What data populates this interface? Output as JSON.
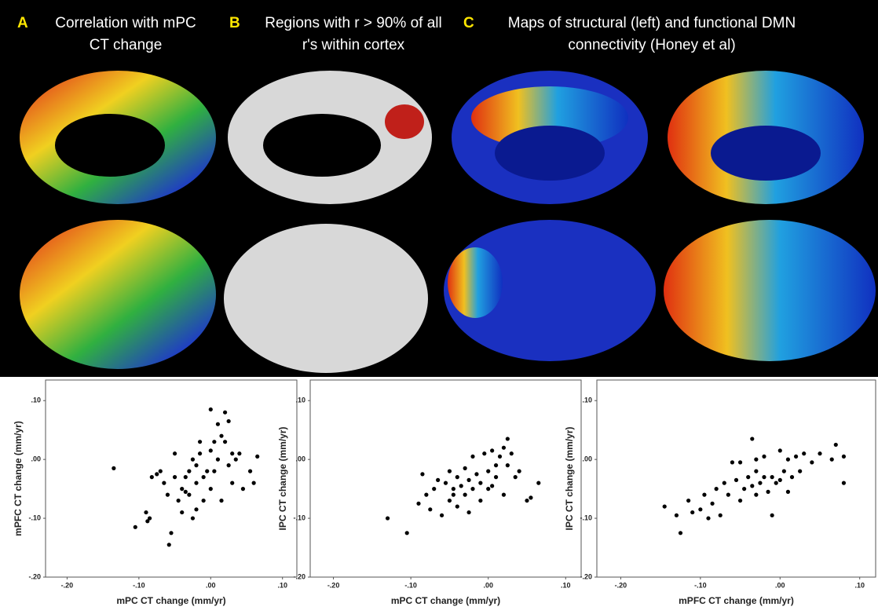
{
  "panels": [
    {
      "letter": "A",
      "lines": [
        "Correlation with mPC",
        "CT change"
      ]
    },
    {
      "letter": "B",
      "lines": [
        "Regions with r > 90% of all",
        "r's within cortex"
      ]
    },
    {
      "letter": "C",
      "lines": [
        "Maps of structural (left) and functional DMN",
        "connectivity (Honey et al)"
      ]
    }
  ],
  "chart_data": [
    {
      "type": "scatter",
      "xlabel": "mPC CT change (mm/yr)",
      "ylabel": "mPFC CT change (mm/yr)",
      "color": "#000000",
      "xlim": [
        -0.23,
        0.12
      ],
      "ylim": [
        -0.2,
        0.135
      ],
      "xticks": [
        {
          "value": -0.2,
          "label": "-.20"
        },
        {
          "value": -0.1,
          "label": "-.10"
        },
        {
          "value": 0,
          "label": ".00"
        },
        {
          "value": 0.1,
          "label": ".10"
        }
      ],
      "yticks": [
        {
          "value": 0.1,
          "label": ".10"
        },
        {
          "value": 0,
          "label": ".00"
        },
        {
          "value": -0.1,
          "label": "-.10"
        },
        {
          "value": -0.2,
          "label": "-.20"
        }
      ],
      "x": [
        -0.135,
        -0.105,
        -0.09,
        -0.088,
        -0.085,
        -0.082,
        -0.075,
        -0.07,
        -0.065,
        -0.06,
        -0.058,
        -0.055,
        -0.05,
        -0.05,
        -0.045,
        -0.04,
        -0.04,
        -0.035,
        -0.03,
        -0.03,
        -0.025,
        -0.025,
        -0.02,
        -0.02,
        -0.015,
        -0.01,
        -0.01,
        -0.005,
        0.0,
        0.0,
        0.0,
        0.005,
        0.005,
        0.01,
        0.01,
        0.015,
        0.02,
        0.02,
        0.025,
        0.025,
        0.03,
        0.03,
        0.035,
        0.04,
        0.045,
        0.055,
        0.06,
        0.065,
        -0.02,
        -0.015,
        -0.035,
        0.015
      ],
      "values": [
        -0.015,
        -0.115,
        -0.09,
        -0.105,
        -0.1,
        -0.03,
        -0.025,
        -0.02,
        -0.04,
        -0.06,
        -0.145,
        -0.125,
        0.01,
        -0.03,
        -0.07,
        -0.09,
        -0.05,
        -0.03,
        -0.02,
        -0.06,
        -0.1,
        0.0,
        -0.04,
        -0.01,
        0.01,
        -0.03,
        -0.07,
        -0.02,
        0.015,
        -0.05,
        0.085,
        0.03,
        -0.02,
        0.06,
        0.0,
        -0.07,
        0.08,
        0.03,
        -0.01,
        0.065,
        0.01,
        -0.04,
        0.0,
        0.01,
        -0.05,
        -0.02,
        -0.04,
        0.005,
        -0.085,
        0.03,
        -0.055,
        0.04
      ]
    },
    {
      "type": "scatter",
      "xlabel": "mPC CT change (mm/yr)",
      "ylabel": "IPC CT change (mm/yr)",
      "color": "#000000",
      "xlim": [
        -0.23,
        0.12
      ],
      "ylim": [
        -0.2,
        0.135
      ],
      "xticks": [
        {
          "value": -0.2,
          "label": "-.20"
        },
        {
          "value": -0.1,
          "label": "-.10"
        },
        {
          "value": 0,
          "label": ".00"
        },
        {
          "value": 0.1,
          "label": ".10"
        }
      ],
      "yticks": [
        {
          "value": 0.1,
          "label": ".10"
        },
        {
          "value": 0,
          "label": ".00"
        },
        {
          "value": -0.1,
          "label": "-.10"
        },
        {
          "value": -0.2,
          "label": "-.20"
        }
      ],
      "x": [
        -0.13,
        -0.105,
        -0.09,
        -0.085,
        -0.08,
        -0.075,
        -0.07,
        -0.065,
        -0.06,
        -0.055,
        -0.05,
        -0.05,
        -0.045,
        -0.04,
        -0.04,
        -0.035,
        -0.03,
        -0.03,
        -0.025,
        -0.02,
        -0.02,
        -0.015,
        -0.01,
        -0.01,
        -0.005,
        0.0,
        0.0,
        0.005,
        0.01,
        0.01,
        0.015,
        0.02,
        0.02,
        0.025,
        0.025,
        0.03,
        0.035,
        0.04,
        0.05,
        0.055,
        0.065,
        -0.025,
        -0.045,
        0.005
      ],
      "values": [
        -0.1,
        -0.125,
        -0.075,
        -0.025,
        -0.06,
        -0.085,
        -0.05,
        -0.035,
        -0.095,
        -0.04,
        -0.07,
        -0.02,
        -0.05,
        -0.03,
        -0.08,
        -0.045,
        -0.06,
        -0.015,
        -0.035,
        -0.05,
        0.005,
        -0.025,
        -0.07,
        -0.04,
        0.01,
        -0.02,
        -0.05,
        0.015,
        -0.01,
        -0.03,
        0.005,
        -0.06,
        0.02,
        0.035,
        -0.01,
        0.01,
        -0.03,
        -0.02,
        -0.07,
        -0.065,
        -0.04,
        -0.09,
        -0.06,
        -0.045
      ]
    },
    {
      "type": "scatter",
      "xlabel": "mPFC CT change (mm/yr)",
      "ylabel": "IPC CT change (mm/yr)",
      "color": "#000000",
      "xlim": [
        -0.23,
        0.12
      ],
      "ylim": [
        -0.2,
        0.135
      ],
      "xticks": [
        {
          "value": -0.2,
          "label": "-.20"
        },
        {
          "value": -0.1,
          "label": "-.10"
        },
        {
          "value": 0,
          "label": ".00"
        },
        {
          "value": 0.1,
          "label": ".10"
        }
      ],
      "yticks": [
        {
          "value": 0.1,
          "label": ".10"
        },
        {
          "value": 0,
          "label": ".00"
        },
        {
          "value": -0.1,
          "label": "-.10"
        },
        {
          "value": -0.2,
          "label": "-.20"
        }
      ],
      "x": [
        -0.145,
        -0.13,
        -0.125,
        -0.115,
        -0.11,
        -0.1,
        -0.095,
        -0.09,
        -0.085,
        -0.08,
        -0.075,
        -0.07,
        -0.065,
        -0.06,
        -0.055,
        -0.05,
        -0.045,
        -0.04,
        -0.035,
        -0.035,
        -0.03,
        -0.03,
        -0.025,
        -0.02,
        -0.02,
        -0.015,
        -0.01,
        -0.01,
        -0.005,
        0.0,
        0.0,
        0.005,
        0.01,
        0.015,
        0.02,
        0.025,
        0.03,
        0.04,
        0.05,
        0.065,
        0.07,
        0.08,
        0.08,
        -0.03,
        0.01,
        -0.05
      ],
      "values": [
        -0.08,
        -0.095,
        -0.125,
        -0.07,
        -0.09,
        -0.085,
        -0.06,
        -0.1,
        -0.075,
        -0.05,
        -0.095,
        -0.04,
        -0.06,
        -0.005,
        -0.035,
        -0.005,
        -0.05,
        -0.03,
        0.035,
        -0.045,
        -0.06,
        -0.02,
        -0.04,
        -0.03,
        0.005,
        -0.055,
        -0.095,
        -0.03,
        -0.04,
        -0.035,
        0.015,
        -0.02,
        0.0,
        -0.03,
        0.005,
        -0.02,
        0.01,
        -0.005,
        0.01,
        0.0,
        0.025,
        0.005,
        -0.04,
        0.0,
        -0.055,
        -0.07
      ]
    }
  ]
}
